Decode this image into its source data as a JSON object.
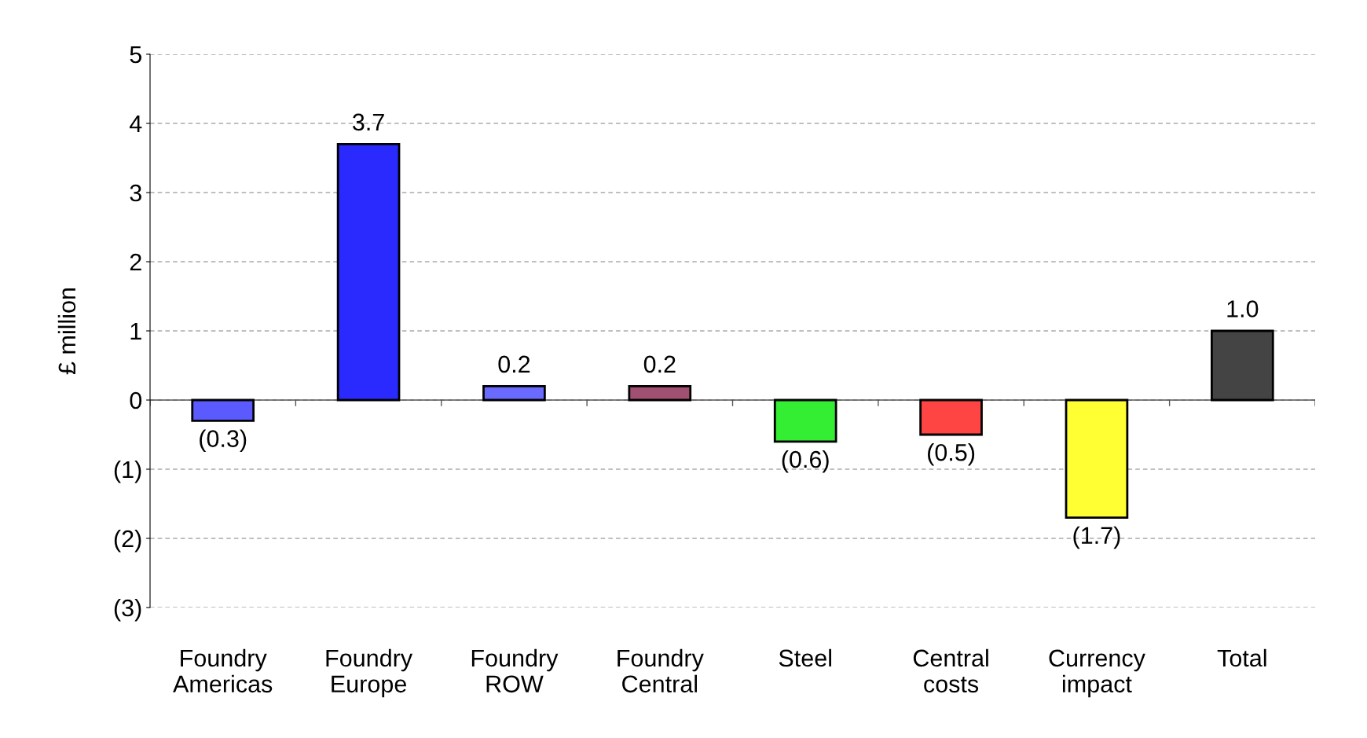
{
  "chart_data": {
    "type": "bar",
    "ylabel": "£ million",
    "categories": [
      "Foundry\nAmericas",
      "Foundry\nEurope",
      "Foundry\nROW",
      "Foundry\nCentral",
      "Steel",
      "Central\ncosts",
      "Currency\nimpact",
      "Total"
    ],
    "values": [
      -0.3,
      3.7,
      0.2,
      0.2,
      -0.6,
      -0.5,
      -1.7,
      1.0
    ],
    "value_labels": [
      "(0.3)",
      "3.7",
      "0.2",
      "0.2",
      "(0.6)",
      "(0.5)",
      "(1.7)",
      "1.0"
    ],
    "colors": [
      "#5a5aff",
      "#2a2aff",
      "#6a6aff",
      "#a05070",
      "#33ee33",
      "#ff4444",
      "#ffff33",
      "#444444"
    ],
    "ylim": [
      -3,
      5
    ],
    "yticks": [
      {
        "value": -3,
        "label": "(3)"
      },
      {
        "value": -2,
        "label": "(2)"
      },
      {
        "value": -1,
        "label": "(1)"
      },
      0,
      1,
      2,
      3,
      4,
      5
    ],
    "grid": "y"
  }
}
